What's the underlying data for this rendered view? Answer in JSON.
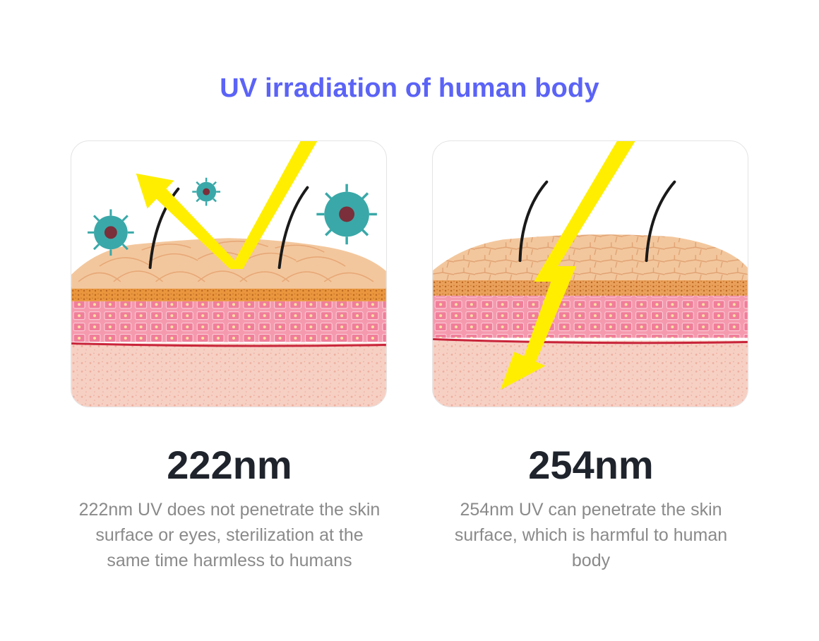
{
  "title": "UV irradiation of human body",
  "panels": [
    {
      "wavelength": "222nm",
      "description": "222nm UV does not penetrate the skin surface or eyes, sterilization at the same time harmless to humans"
    },
    {
      "wavelength": "254nm",
      "description": "254nm UV can penetrate the skin surface, which is harmful to human body"
    }
  ],
  "colors": {
    "title": "#5b63f6",
    "uv_ray": "#ffee00",
    "virus": "#3aa8a8",
    "epidermis": "#f3c79d",
    "dermis": "#f07e9a"
  }
}
